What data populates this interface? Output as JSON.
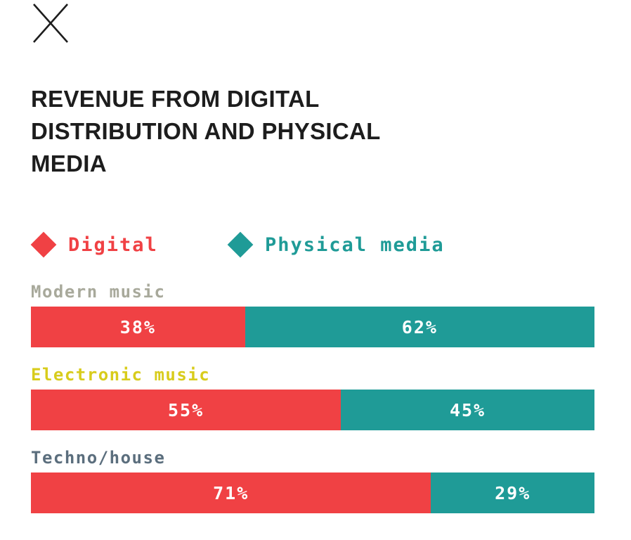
{
  "colors": {
    "digital": "#f04144",
    "physical": "#1f9b97",
    "title": "#1d1d1d"
  },
  "close_icon": "close-icon",
  "chart_data": {
    "type": "bar",
    "stacked": true,
    "orientation": "horizontal",
    "title": "REVENUE FROM DIGITAL DISTRIBUTION AND PHYSICAL MEDIA",
    "categories": [
      "Modern music",
      "Electronic music",
      "Techno/house"
    ],
    "category_colors": [
      "#a8a99b",
      "#d8cc1c",
      "#5b6e7d"
    ],
    "series": [
      {
        "name": "Digital",
        "values": [
          38,
          55,
          71
        ],
        "labels": [
          "38%",
          "55%",
          "71%"
        ]
      },
      {
        "name": "Physical media",
        "values": [
          62,
          45,
          29
        ],
        "labels": [
          "62%",
          "45%",
          "29%"
        ]
      }
    ],
    "unit": "%",
    "xlim": [
      0,
      100
    ]
  }
}
